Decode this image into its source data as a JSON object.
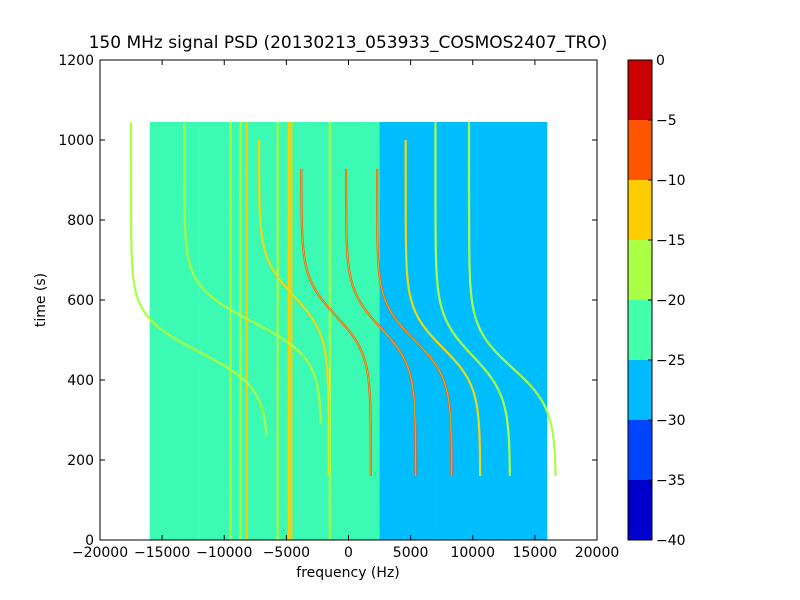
{
  "chart_data": {
    "type": "heatmap",
    "title": "150 MHz signal PSD (20130213_053933_COSMOS2407_TRO)",
    "xlabel": "frequency (Hz)",
    "ylabel": "time (s)",
    "xlim": [
      -20000,
      20000
    ],
    "ylim": [
      0,
      1200
    ],
    "x_ticks": [
      -20000,
      -15000,
      -10000,
      -5000,
      0,
      5000,
      10000,
      15000,
      20000
    ],
    "x_tick_labels": [
      "−20000",
      "−15000",
      "−10000",
      "−5000",
      "0",
      "5000",
      "10000",
      "15000",
      "20000"
    ],
    "y_ticks": [
      0,
      200,
      400,
      600,
      800,
      1000,
      1200
    ],
    "y_tick_labels": [
      "0",
      "200",
      "400",
      "600",
      "800",
      "1000",
      "1200"
    ],
    "data_extent": {
      "x": [
        -16000,
        16000
      ],
      "y": [
        0,
        1045
      ]
    },
    "colorbar": {
      "levels": [
        -40,
        -35,
        -30,
        -25,
        -20,
        -15,
        -10,
        -5,
        0
      ],
      "tick_labels": [
        "−40",
        "−35",
        "−30",
        "−25",
        "−20",
        "−15",
        "−10",
        "−5",
        "0"
      ],
      "colors": [
        "#0000cc",
        "#0044ff",
        "#00bbff",
        "#44ffaa",
        "#aaff44",
        "#ffcc00",
        "#ff5500",
        "#cc0000"
      ]
    },
    "background_regions": [
      {
        "x": [
          -16000,
          -12000
        ],
        "value": -22.5
      },
      {
        "x": [
          -12000,
          2500
        ],
        "value": -22.5
      },
      {
        "x": [
          2500,
          7000
        ],
        "value": -25.5
      },
      {
        "x": [
          7000,
          16000
        ],
        "value": -27.5
      }
    ],
    "vertical_lines": [
      {
        "x": -9500,
        "value": -17
      },
      {
        "x": -8700,
        "value": -17
      },
      {
        "x": -8200,
        "value": -15
      },
      {
        "x": -5700,
        "value": -17
      },
      {
        "x": -4800,
        "value": -12
      },
      {
        "x": -4600,
        "value": -15
      },
      {
        "x": -1500,
        "value": -17
      }
    ],
    "doppler_tracks": [
      {
        "f0": -12000,
        "t0": 470,
        "span": 5500,
        "tau": 90,
        "t_start": 260,
        "t_end": 1045,
        "value": -17
      },
      {
        "f0": -7700,
        "t0": 545,
        "span": 5500,
        "tau": 90,
        "t_start": 290,
        "t_end": 1045,
        "value": -17
      },
      {
        "f0": -4400,
        "t0": 610,
        "span": 2800,
        "tau": 95,
        "t_start": 160,
        "t_end": 1000,
        "value": -12
      },
      {
        "f0": -1000,
        "t0": 560,
        "span": 2800,
        "tau": 95,
        "t_start": 160,
        "t_end": 930,
        "value": -7
      },
      {
        "f0": 2600,
        "t0": 530,
        "span": 2800,
        "tau": 95,
        "t_start": 160,
        "t_end": 930,
        "value": -7
      },
      {
        "f0": 5300,
        "t0": 500,
        "span": 3000,
        "tau": 95,
        "t_start": 160,
        "t_end": 930,
        "value": -7
      },
      {
        "f0": 7600,
        "t0": 480,
        "span": 3000,
        "tau": 95,
        "t_start": 160,
        "t_end": 1000,
        "value": -15
      },
      {
        "f0": 10000,
        "t0": 460,
        "span": 3000,
        "tau": 100,
        "t_start": 160,
        "t_end": 1045,
        "value": -17
      },
      {
        "f0": 13200,
        "t0": 430,
        "span": 3500,
        "tau": 100,
        "t_start": 160,
        "t_end": 1045,
        "value": -17
      }
    ]
  }
}
